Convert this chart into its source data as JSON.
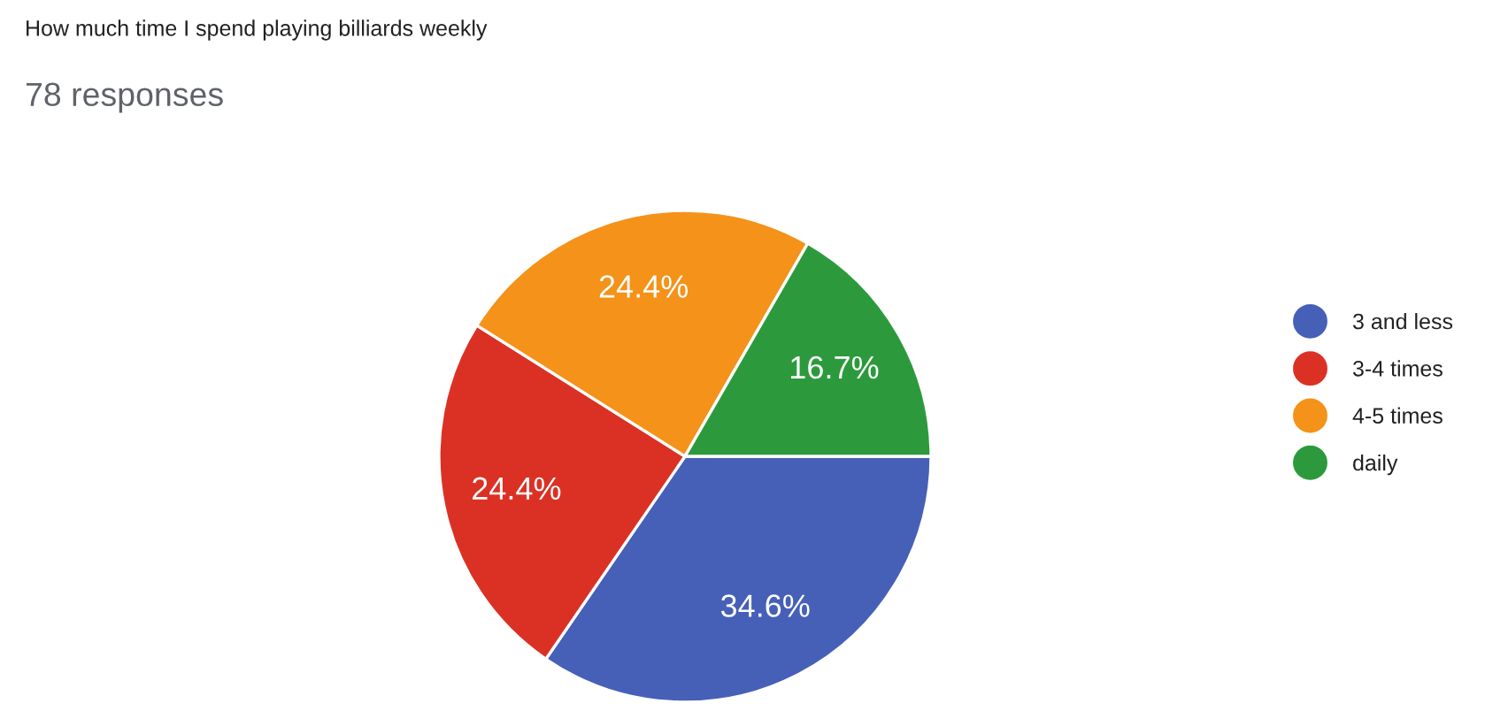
{
  "chart_data": {
    "type": "pie",
    "title": "How much time I spend playing billiards weekly",
    "subtitle": "78 responses",
    "categories": [
      "3 and less",
      "3-4 times",
      "4-5 times",
      "daily"
    ],
    "values": [
      34.6,
      24.4,
      24.4,
      16.7
    ],
    "value_labels": [
      "34.6%",
      "24.4%",
      "24.4%",
      "16.7%"
    ],
    "colors": [
      "#4660b8",
      "#db3124",
      "#f49219",
      "#2c9a3c"
    ],
    "legend": "right"
  }
}
